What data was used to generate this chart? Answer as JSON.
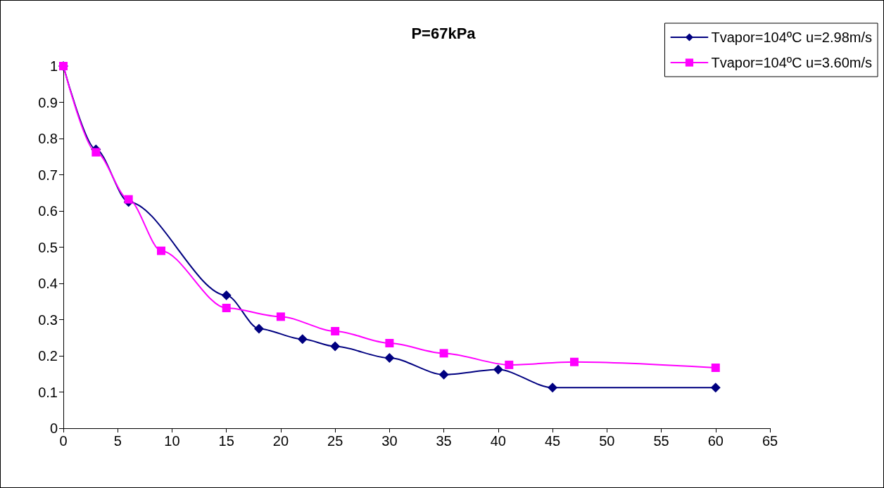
{
  "chart_data": {
    "type": "line",
    "title": "P=67kPa",
    "series": [
      {
        "name": "Tvapor=104ºC u=2.98m/s",
        "color": "#000080",
        "marker": "diamond",
        "x": [
          0,
          3,
          6,
          15,
          18,
          22,
          25,
          30,
          35,
          40,
          45,
          60
        ],
        "values": [
          1,
          0.77,
          0.625,
          0.367,
          0.275,
          0.246,
          0.226,
          0.194,
          0.148,
          0.162,
          0.112,
          0.112
        ]
      },
      {
        "name": "Tvapor=104ºC u=3.60m/s",
        "color": "#ff00ff",
        "marker": "square",
        "x": [
          0,
          3,
          6,
          9,
          15,
          20,
          25,
          30,
          35,
          41,
          47,
          60
        ],
        "values": [
          1,
          0.762,
          0.632,
          0.49,
          0.332,
          0.308,
          0.268,
          0.235,
          0.207,
          0.175,
          0.183,
          0.167
        ]
      }
    ],
    "xlim": [
      0,
      65
    ],
    "xticks": [
      0,
      5,
      10,
      15,
      20,
      25,
      30,
      35,
      40,
      45,
      50,
      55,
      60,
      65
    ],
    "ylim": [
      0,
      1
    ],
    "yticks": [
      0,
      0.1,
      0.2,
      0.3,
      0.4,
      0.5,
      0.6,
      0.7,
      0.8,
      0.9,
      1
    ],
    "grid": false,
    "legend": "top right"
  }
}
